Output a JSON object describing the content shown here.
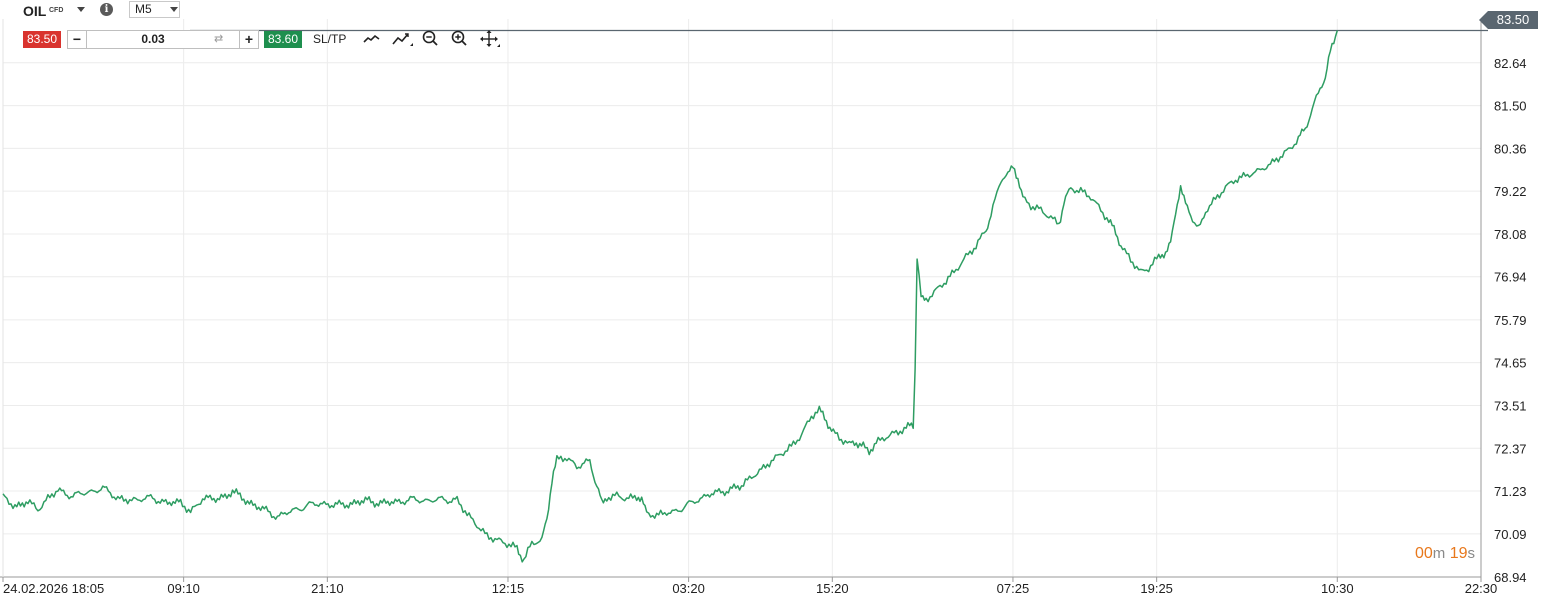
{
  "header": {
    "symbol": "OIL",
    "instrument_type": "CFD",
    "info_label": "i",
    "timeframe": "M5"
  },
  "trade_bar": {
    "sell_price": "83.50",
    "buy_price": "83.60",
    "quantity": "0.03",
    "minus_label": "−",
    "plus_label": "+",
    "swap_glyph": "⇄",
    "sltp_label": "SL/TP",
    "tools": [
      "line-chart-icon",
      "indicators-icon",
      "zoom-out-icon",
      "zoom-in-icon",
      "move-icon"
    ]
  },
  "current_price_tag": "83.50",
  "countdown": {
    "minutes": "00",
    "minutes_unit": "m",
    "seconds": "19",
    "seconds_unit": "s"
  },
  "colors": {
    "line": "#2e9d62",
    "sell": "#d9332e",
    "buy": "#1e8f4e",
    "price_tag": "#5a6670",
    "timer": "#e8781c"
  },
  "chart_data": {
    "type": "line",
    "symbol": "OIL",
    "y_ticks": [
      "82.64",
      "81.50",
      "80.36",
      "79.22",
      "78.08",
      "76.94",
      "75.79",
      "74.65",
      "73.51",
      "72.37",
      "71.23",
      "70.09",
      "68.94"
    ],
    "ylim": [
      68.94,
      83.78
    ],
    "x_ticks": [
      "24.02.2026 18:05",
      "09:10",
      "21:10",
      "12:15",
      "03:20",
      "15:20",
      "07:25",
      "19:25",
      "10:30",
      "22:30"
    ],
    "x_tick_index": [
      0,
      181,
      325,
      506,
      687,
      831,
      1012,
      1156,
      1337,
      1481
    ],
    "xlim": [
      0,
      1481
    ],
    "grid": true,
    "series": [
      {
        "values": [
          [
            0,
            71.1
          ],
          [
            12,
            70.82
          ],
          [
            25,
            70.95
          ],
          [
            35,
            70.7
          ],
          [
            45,
            71.0
          ],
          [
            55,
            71.25
          ],
          [
            70,
            71.1
          ],
          [
            85,
            71.2
          ],
          [
            100,
            71.3
          ],
          [
            115,
            71.05
          ],
          [
            135,
            71.0
          ],
          [
            150,
            71.05
          ],
          [
            165,
            70.9
          ],
          [
            178,
            70.95
          ],
          [
            188,
            70.7
          ],
          [
            200,
            71.05
          ],
          [
            215,
            71.0
          ],
          [
            230,
            71.22
          ],
          [
            245,
            70.95
          ],
          [
            260,
            70.75
          ],
          [
            275,
            70.55
          ],
          [
            290,
            70.7
          ],
          [
            305,
            70.85
          ],
          [
            320,
            70.9
          ],
          [
            335,
            70.85
          ],
          [
            350,
            70.9
          ],
          [
            365,
            70.98
          ],
          [
            380,
            70.9
          ],
          [
            395,
            70.95
          ],
          [
            410,
            71.0
          ],
          [
            425,
            70.98
          ],
          [
            440,
            71.0
          ],
          [
            455,
            71.0
          ],
          [
            465,
            70.6
          ],
          [
            475,
            70.3
          ],
          [
            485,
            70.0
          ],
          [
            495,
            69.9
          ],
          [
            505,
            69.8
          ],
          [
            515,
            69.7
          ],
          [
            522,
            69.4
          ],
          [
            530,
            69.85
          ],
          [
            540,
            69.9
          ],
          [
            545,
            70.5
          ],
          [
            550,
            71.5
          ],
          [
            555,
            72.1
          ],
          [
            565,
            72.15
          ],
          [
            575,
            71.9
          ],
          [
            588,
            72.0
          ],
          [
            595,
            71.4
          ],
          [
            600,
            70.9
          ],
          [
            605,
            71.05
          ],
          [
            615,
            71.1
          ],
          [
            625,
            71.0
          ],
          [
            635,
            71.05
          ],
          [
            640,
            71.05
          ],
          [
            645,
            70.6
          ],
          [
            655,
            70.55
          ],
          [
            665,
            70.65
          ],
          [
            680,
            70.75
          ],
          [
            695,
            71.0
          ],
          [
            710,
            71.15
          ],
          [
            725,
            71.25
          ],
          [
            740,
            71.35
          ],
          [
            750,
            71.6
          ],
          [
            760,
            71.8
          ],
          [
            770,
            72.05
          ],
          [
            780,
            72.25
          ],
          [
            790,
            72.45
          ],
          [
            800,
            72.75
          ],
          [
            810,
            73.25
          ],
          [
            818,
            73.4
          ],
          [
            825,
            73.1
          ],
          [
            832,
            72.8
          ],
          [
            840,
            72.6
          ],
          [
            848,
            72.45
          ],
          [
            855,
            72.55
          ],
          [
            862,
            72.4
          ],
          [
            868,
            72.25
          ],
          [
            875,
            72.55
          ],
          [
            885,
            72.7
          ],
          [
            895,
            72.8
          ],
          [
            905,
            72.9
          ],
          [
            912,
            73.0
          ],
          [
            914,
            74.5
          ],
          [
            916,
            77.5
          ],
          [
            920,
            76.4
          ],
          [
            925,
            76.3
          ],
          [
            935,
            76.55
          ],
          [
            945,
            76.8
          ],
          [
            955,
            77.1
          ],
          [
            965,
            77.45
          ],
          [
            975,
            77.75
          ],
          [
            985,
            78.2
          ],
          [
            990,
            78.6
          ],
          [
            1000,
            79.5
          ],
          [
            1007,
            79.7
          ],
          [
            1012,
            79.85
          ],
          [
            1017,
            79.6
          ],
          [
            1022,
            79.0
          ],
          [
            1030,
            78.8
          ],
          [
            1040,
            78.7
          ],
          [
            1050,
            78.5
          ],
          [
            1058,
            78.35
          ],
          [
            1063,
            78.9
          ],
          [
            1070,
            79.3
          ],
          [
            1080,
            79.25
          ],
          [
            1090,
            79.1
          ],
          [
            1100,
            78.75
          ],
          [
            1108,
            78.45
          ],
          [
            1115,
            78.1
          ],
          [
            1122,
            77.7
          ],
          [
            1130,
            77.4
          ],
          [
            1140,
            77.05
          ],
          [
            1148,
            77.15
          ],
          [
            1158,
            77.45
          ],
          [
            1165,
            77.6
          ],
          [
            1170,
            77.8
          ],
          [
            1175,
            78.7
          ],
          [
            1180,
            79.3
          ],
          [
            1185,
            78.9
          ],
          [
            1192,
            78.45
          ],
          [
            1198,
            78.2
          ],
          [
            1205,
            78.7
          ],
          [
            1215,
            79.0
          ],
          [
            1225,
            79.3
          ],
          [
            1235,
            79.5
          ],
          [
            1245,
            79.6
          ],
          [
            1255,
            79.7
          ],
          [
            1262,
            79.85
          ],
          [
            1270,
            79.95
          ],
          [
            1280,
            80.15
          ],
          [
            1290,
            80.35
          ],
          [
            1298,
            80.6
          ],
          [
            1305,
            80.9
          ],
          [
            1312,
            81.4
          ],
          [
            1318,
            81.8
          ],
          [
            1325,
            82.3
          ],
          [
            1330,
            82.9
          ],
          [
            1337,
            83.5
          ]
        ]
      }
    ]
  }
}
